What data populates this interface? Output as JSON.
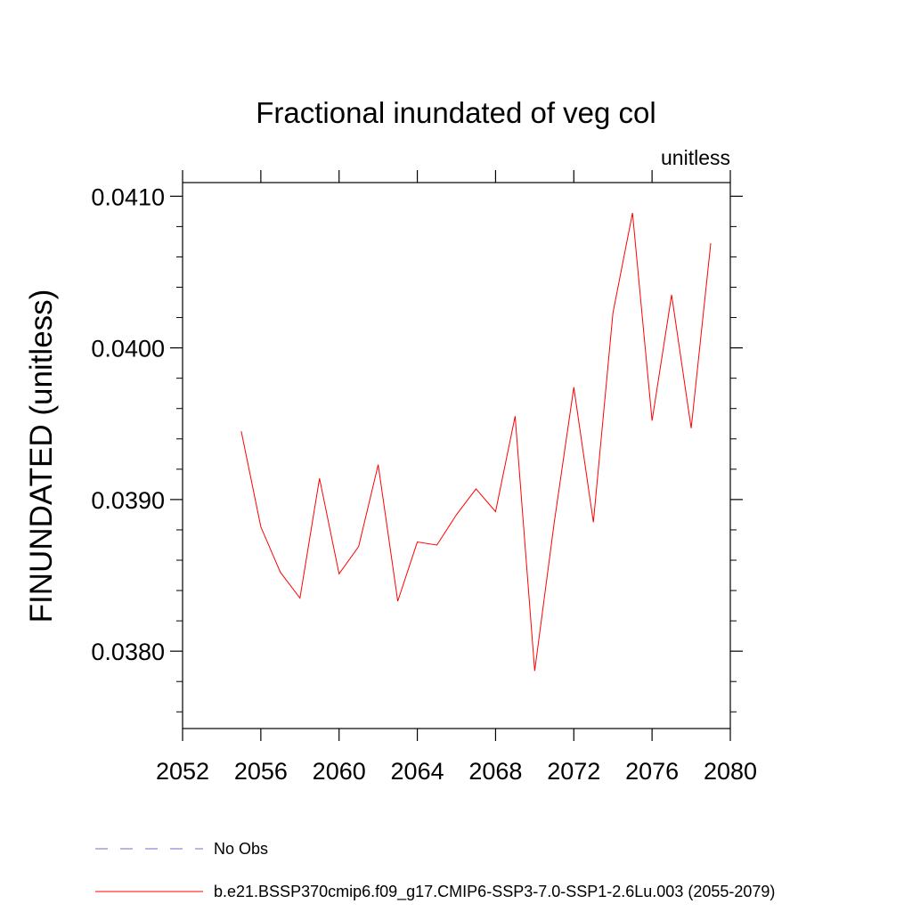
{
  "chart_data": {
    "type": "line",
    "title": "Fractional inundated of veg col",
    "units_label": "unitless",
    "ylabel": "FINUNDATED  (unitless)",
    "xlabel": "",
    "xlim": [
      2052,
      2080
    ],
    "ylim": [
      0.03749,
      0.04109
    ],
    "x_ticks": [
      2052,
      2056,
      2060,
      2064,
      2068,
      2072,
      2076,
      2080
    ],
    "x_tick_labels": [
      "2052",
      "2056",
      "2060",
      "2064",
      "2068",
      "2072",
      "2076",
      "2080"
    ],
    "y_ticks": [
      0.038,
      0.039,
      0.04,
      0.041
    ],
    "y_tick_labels": [
      "0.0380",
      "0.0390",
      "0.0400",
      "0.0410"
    ],
    "grid": false,
    "legend_position": "bottom",
    "series": [
      {
        "name": "b.e21.BSSP370cmip6.f09_g17.CMIP6-SSP3-7.0-SSP1-2.6Lu.003 (2055-2079)",
        "color": "#ff0000",
        "dash": "solid",
        "x": [
          2055,
          2056,
          2057,
          2058,
          2059,
          2060,
          2061,
          2062,
          2063,
          2064,
          2065,
          2066,
          2067,
          2068,
          2069,
          2070,
          2071,
          2072,
          2073,
          2074,
          2075,
          2076,
          2077,
          2078,
          2079
        ],
        "values": [
          0.03945,
          0.03882,
          0.03852,
          0.03835,
          0.03914,
          0.03851,
          0.03869,
          0.03923,
          0.03833,
          0.03872,
          0.0387,
          0.0389,
          0.03907,
          0.03892,
          0.03955,
          0.03787,
          0.03885,
          0.03974,
          0.03885,
          0.04023,
          0.04089,
          0.03952,
          0.04035,
          0.03947,
          0.04069
        ]
      }
    ],
    "legend": [
      {
        "label": "No Obs",
        "color": "#7b68c8",
        "dash": "dashed"
      },
      {
        "label": "b.e21.BSSP370cmip6.f09_g17.CMIP6-SSP3-7.0-SSP1-2.6Lu.003 (2055-2079)",
        "color": "#ff0000",
        "dash": "solid"
      }
    ]
  }
}
